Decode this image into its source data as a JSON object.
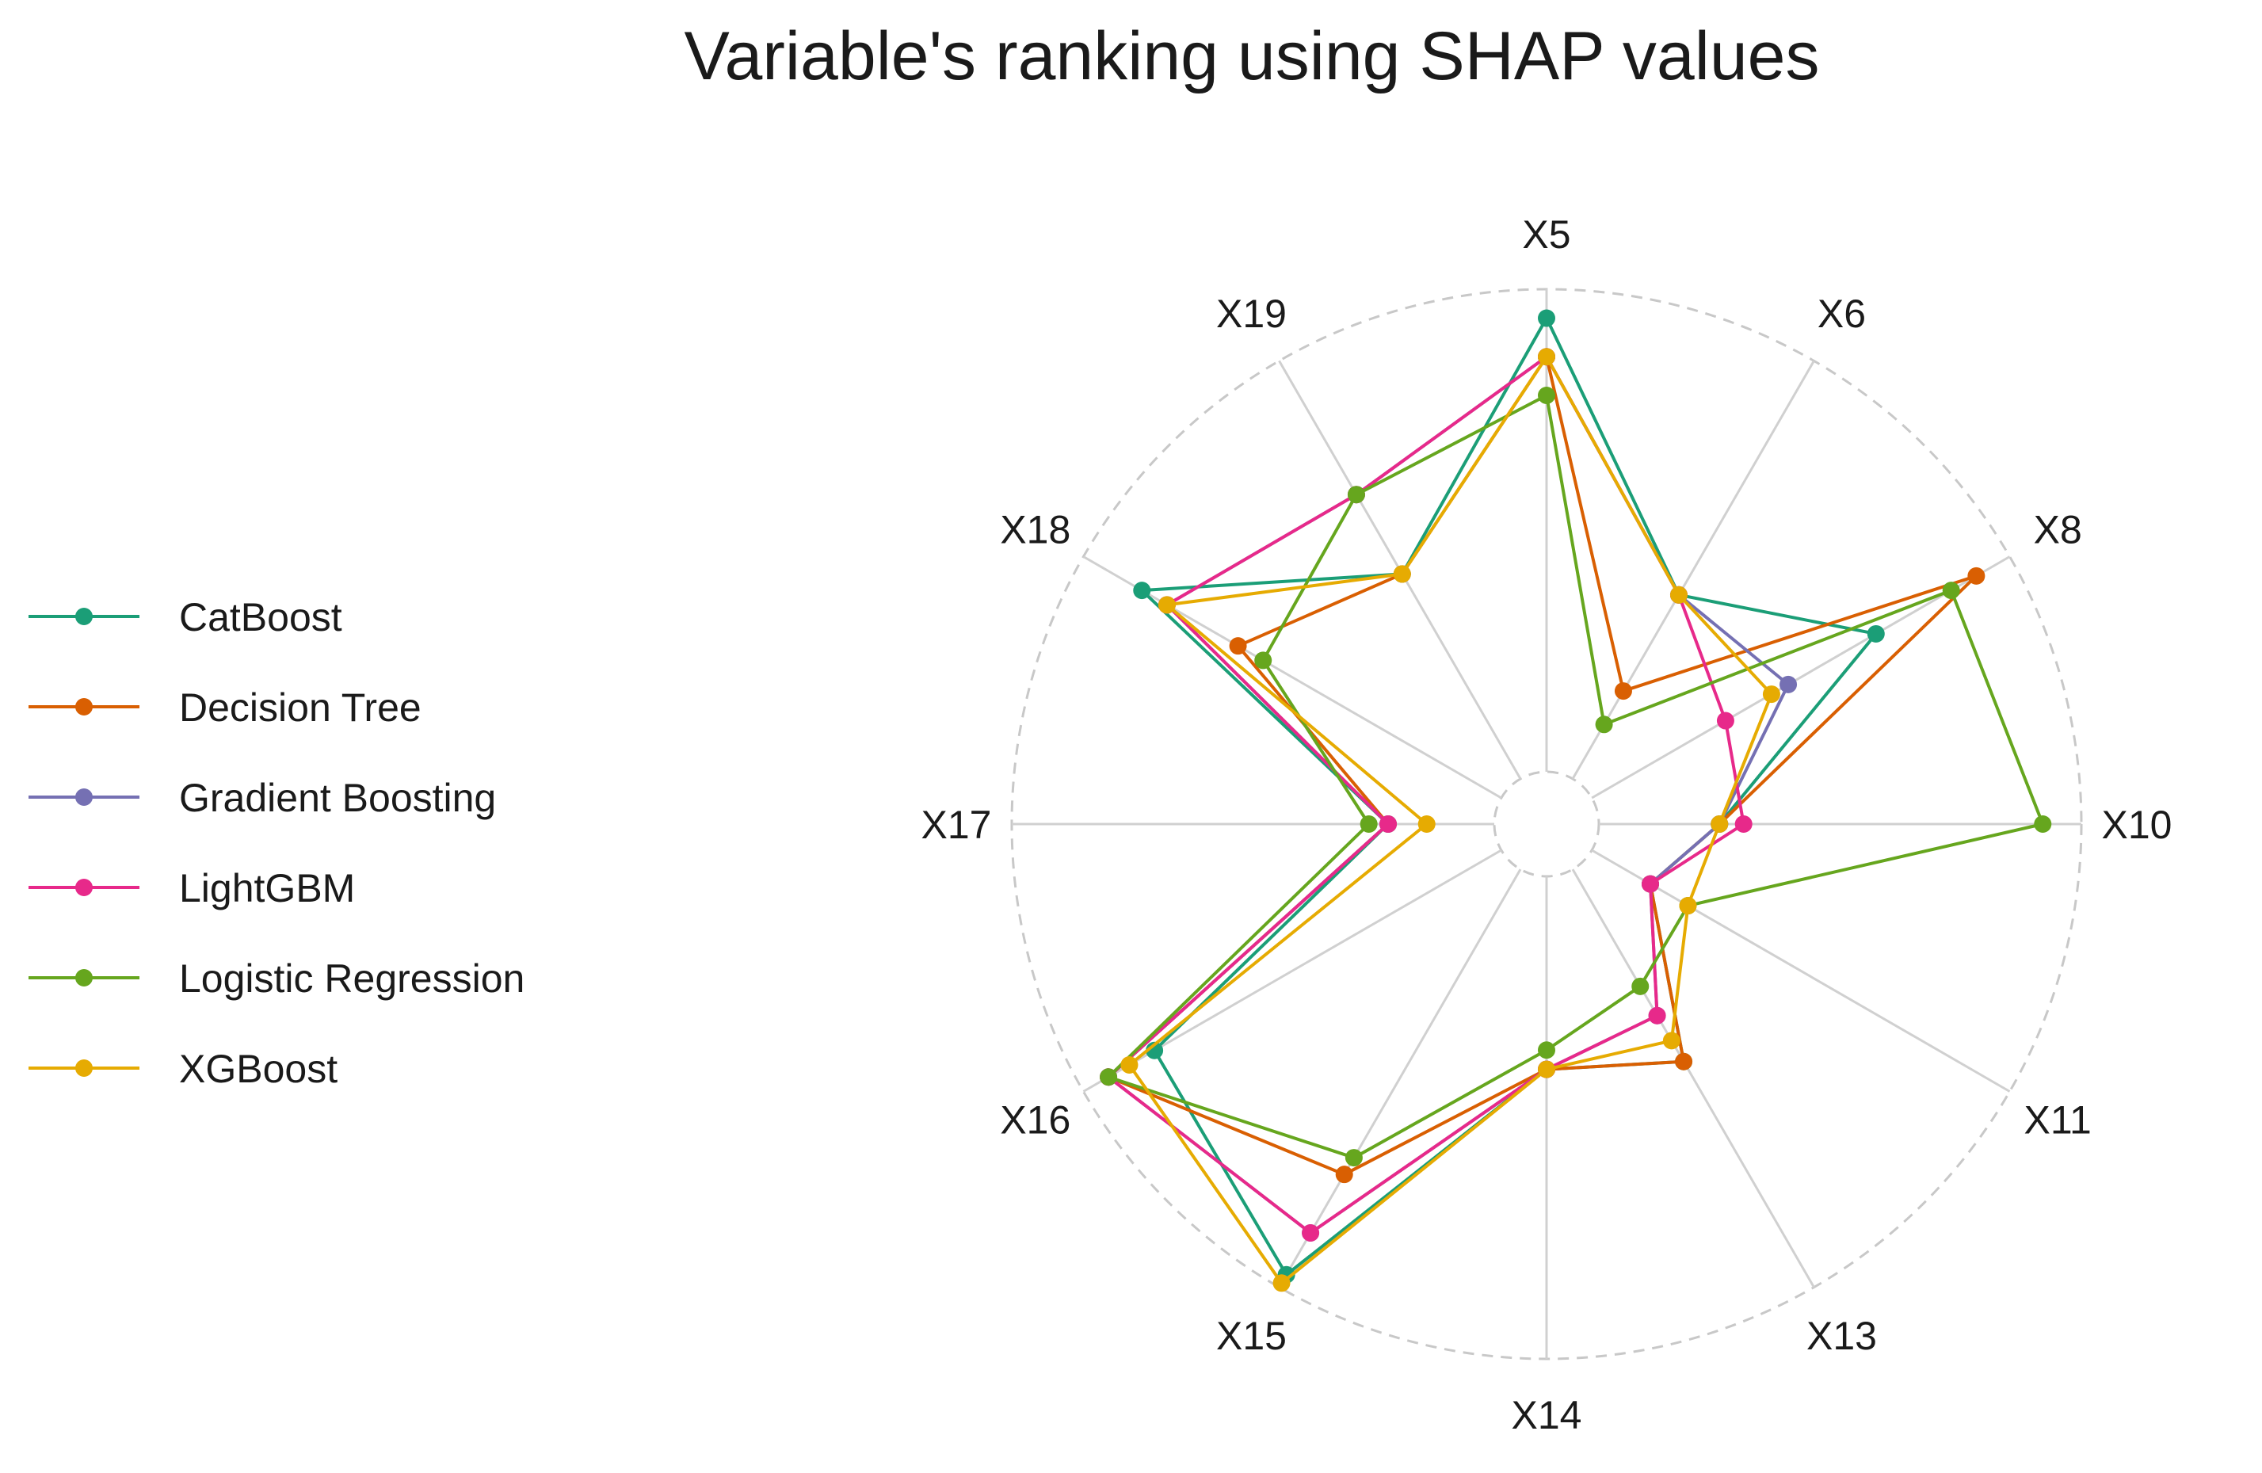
{
  "chart_data": {
    "type": "radar",
    "title": "Variable's ranking using SHAP values",
    "axes": [
      "X5",
      "X6",
      "X8",
      "X10",
      "X11",
      "X13",
      "X14",
      "X15",
      "X16",
      "X17",
      "X18",
      "X19"
    ],
    "rmax": 1.0,
    "gridlines": "dashed circles at inner and outer radius, solid spokes",
    "legend_position": "left",
    "series": [
      {
        "name": "CatBoost",
        "color": "#1b9e77",
        "values": [
          0.94,
          0.44,
          0.68,
          0.25,
          0.14,
          0.46,
          0.4,
          0.97,
          0.83,
          0.22,
          0.86,
          0.49
        ]
      },
      {
        "name": "Decision Tree",
        "color": "#d95f02",
        "values": [
          0.86,
          0.21,
          0.92,
          0.25,
          0.14,
          0.46,
          0.4,
          0.73,
          0.94,
          0.22,
          0.63,
          0.49
        ]
      },
      {
        "name": "Gradient Boosting",
        "color": "#7570b3",
        "values": [
          0.86,
          0.44,
          0.47,
          0.25,
          0.14,
          0.35,
          0.4,
          0.87,
          0.94,
          0.22,
          0.8,
          0.68
        ]
      },
      {
        "name": "LightGBM",
        "color": "#e7298a",
        "values": [
          0.86,
          0.44,
          0.32,
          0.3,
          0.14,
          0.35,
          0.4,
          0.87,
          0.94,
          0.22,
          0.8,
          0.68
        ]
      },
      {
        "name": "Logistic Regression",
        "color": "#66a61e",
        "values": [
          0.78,
          0.13,
          0.86,
          0.92,
          0.23,
          0.28,
          0.36,
          0.69,
          0.94,
          0.26,
          0.57,
          0.68
        ]
      },
      {
        "name": "XGBoost",
        "color": "#e6ab02",
        "values": [
          0.86,
          0.44,
          0.43,
          0.25,
          0.23,
          0.41,
          0.4,
          0.99,
          0.89,
          0.14,
          0.8,
          0.49
        ]
      }
    ]
  }
}
